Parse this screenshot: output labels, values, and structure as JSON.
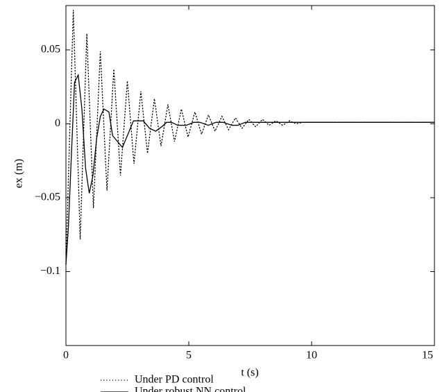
{
  "chart_data": {
    "type": "line",
    "x_label": "t (s)",
    "y_label": "ex (m)",
    "xlim": [
      0,
      15
    ],
    "xticks": [
      0,
      5,
      10,
      15
    ],
    "ylim": [
      -0.15,
      0.08
    ],
    "yticks": [
      0.05,
      0,
      {
        "value": -0.05,
        "label": "−0.05"
      },
      {
        "value": -0.1,
        "label": "−0.1"
      }
    ],
    "grid": false,
    "legend": "bottom",
    "series": [
      {
        "name": "Under PD control",
        "color": "#000000",
        "dash": "dotted",
        "x": [
          0,
          0.3,
          0.58,
          0.85,
          1.12,
          1.4,
          1.67,
          1.95,
          2.22,
          2.5,
          2.77,
          3.05,
          3.32,
          3.6,
          3.87,
          4.15,
          4.42,
          4.7,
          4.97,
          5.25,
          5.52,
          5.8,
          6.07,
          6.35,
          6.62,
          6.9,
          7.17,
          7.45,
          7.72,
          8.0,
          8.27,
          8.55,
          8.82,
          9.1,
          9.37,
          9.65,
          10,
          15
        ],
        "values": [
          -0.095,
          0.077,
          -0.078,
          0.061,
          -0.057,
          0.049,
          -0.045,
          0.037,
          -0.035,
          0.029,
          -0.027,
          0.022,
          -0.02,
          0.017,
          -0.015,
          0.013,
          -0.012,
          0.01,
          -0.009,
          0.008,
          -0.007,
          0.006,
          -0.005,
          0.005,
          -0.004,
          0.004,
          -0.003,
          0.003,
          -0.002,
          0.003,
          -0.001,
          0.002,
          -0.001,
          0.002,
          0,
          0.001,
          0.001,
          0.001
        ]
      },
      {
        "name": "Under robust NN control",
        "color": "#000000",
        "dash": "solid",
        "x": [
          0,
          0.1,
          0.2,
          0.35,
          0.5,
          0.65,
          0.8,
          0.95,
          1.1,
          1.25,
          1.4,
          1.55,
          1.75,
          1.9,
          2.1,
          2.3,
          2.5,
          2.75,
          3.0,
          3.15,
          3.4,
          3.65,
          3.9,
          4.1,
          4.3,
          4.55,
          4.9,
          5.2,
          5.45,
          5.8,
          6.1,
          6.4,
          6.75,
          7.0,
          7.3,
          15
        ],
        "values": [
          -0.095,
          -0.07,
          -0.03,
          0.028,
          0.033,
          0.01,
          -0.03,
          -0.047,
          -0.035,
          -0.01,
          0.005,
          0.01,
          0.008,
          -0.008,
          -0.012,
          -0.016,
          -0.008,
          0.002,
          0.002,
          0.002,
          -0.003,
          -0.005,
          -0.002,
          0.001,
          0.001,
          -0.001,
          -0.001,
          0.001,
          0.001,
          -0.001,
          0.001,
          0.001,
          -0.001,
          -0.001,
          0.001,
          0.001
        ]
      }
    ]
  }
}
